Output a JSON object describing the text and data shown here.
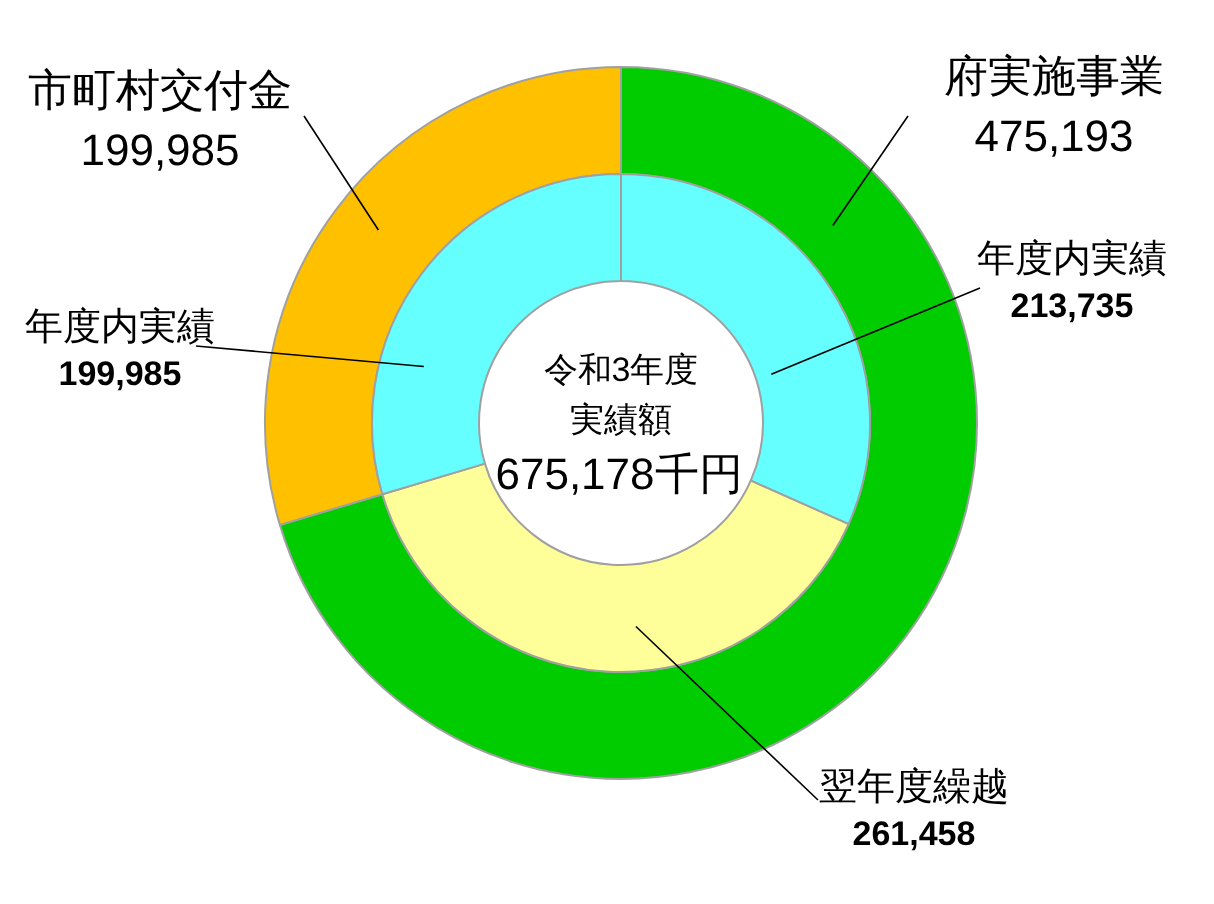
{
  "chart_data": [
    {
      "type": "donut",
      "categories": [
        "府実施事業",
        "市町村交付金"
      ],
      "values": [
        475193,
        199985
      ],
      "value_labels": [
        "475,193",
        "199,985"
      ],
      "colors": [
        "#00cc00",
        "#ffc000"
      ]
    },
    {
      "type": "donut",
      "title": "令和3年度実績額",
      "subtitle": "675,178千円",
      "categories": [
        "年度内実績",
        "翌年度繰越",
        "年度内実績"
      ],
      "values": [
        213735,
        261458,
        199985
      ],
      "value_labels": [
        "213,735",
        "261,458",
        "199,985"
      ],
      "colors": [
        "#66ffff",
        "#ffff99",
        "#66ffff"
      ]
    }
  ]
}
